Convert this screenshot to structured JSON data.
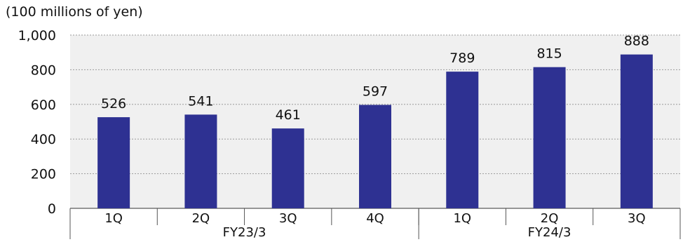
{
  "chart_data": {
    "type": "bar",
    "unit_label": "(100 millions of yen)",
    "categories": [
      "1Q",
      "2Q",
      "3Q",
      "4Q",
      "1Q",
      "2Q",
      "3Q"
    ],
    "groups": [
      {
        "label": "FY23/3",
        "count": 4
      },
      {
        "label": "FY24/3",
        "count": 3
      }
    ],
    "values": [
      526,
      541,
      461,
      597,
      789,
      815,
      888
    ],
    "data_labels": [
      "526",
      "541",
      "461",
      "597",
      "789",
      "815",
      "888"
    ],
    "y_ticks": [
      "0",
      "200",
      "400",
      "600",
      "800",
      "1,000"
    ],
    "ylim": [
      0,
      1000
    ],
    "grid": true,
    "bar_color": "#2e3192",
    "plot_bg": "#f0f0f0"
  }
}
